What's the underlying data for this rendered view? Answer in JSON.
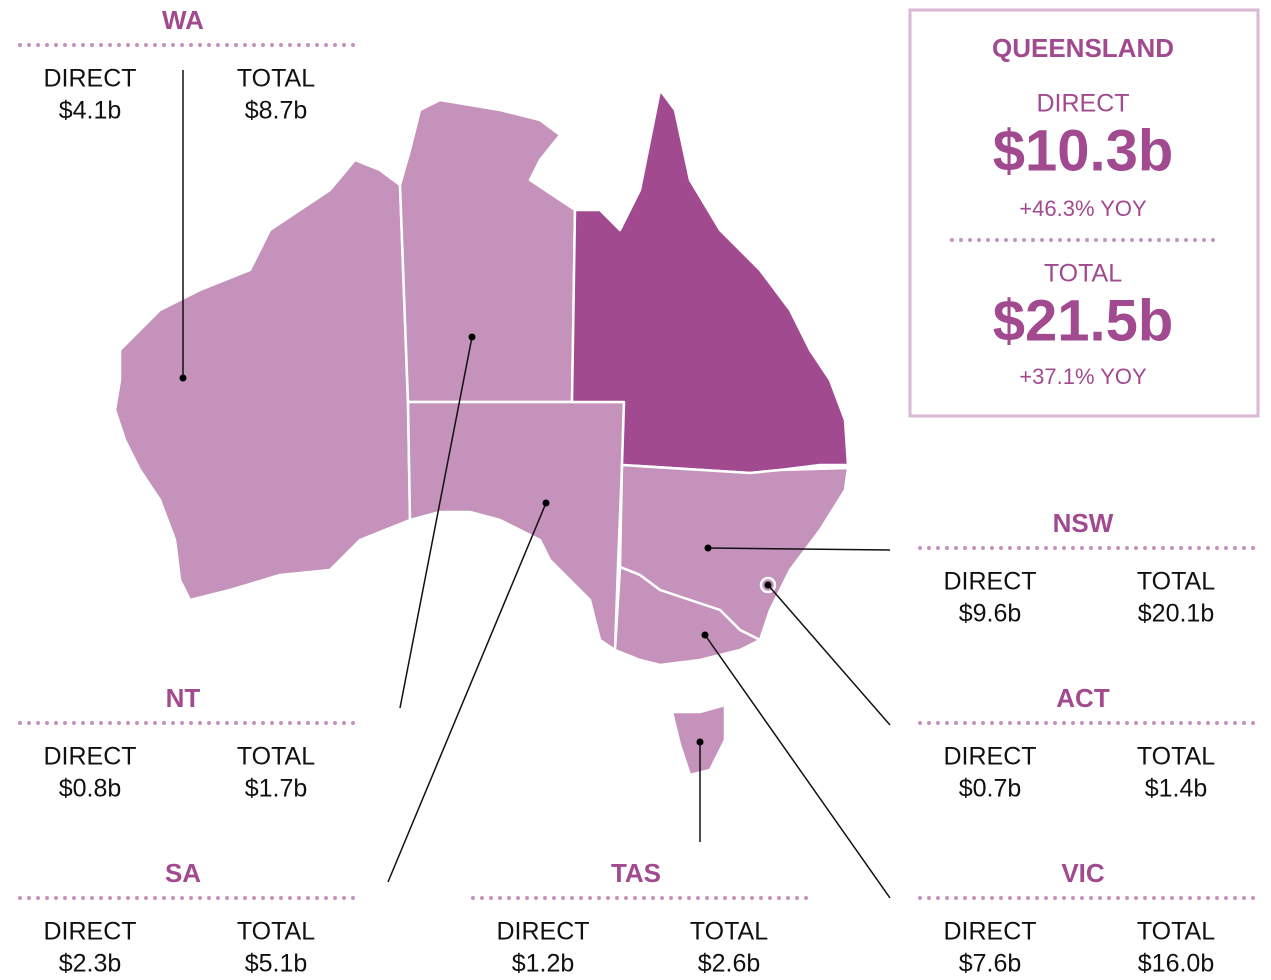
{
  "labels": {
    "direct": "DIRECT",
    "total": "TOTAL"
  },
  "states": [
    {
      "name": "WA",
      "direct": "$4.1b",
      "total": "$8.7b"
    },
    {
      "name": "NT",
      "direct": "$0.8b",
      "total": "$1.7b"
    },
    {
      "name": "SA",
      "direct": "$2.3b",
      "total": "$5.1b"
    },
    {
      "name": "TAS",
      "direct": "$1.2b",
      "total": "$2.6b"
    },
    {
      "name": "NSW",
      "direct": "$9.6b",
      "total": "$20.1b"
    },
    {
      "name": "ACT",
      "direct": "$0.7b",
      "total": "$1.4b"
    },
    {
      "name": "VIC",
      "direct": "$7.6b",
      "total": "$16.0b"
    }
  ],
  "highlight": {
    "name": "QUEENSLAND",
    "direct": "$10.3b",
    "direct_change": "+46.3% YOY",
    "total": "$21.5b",
    "total_change": "+37.1% YOY"
  }
}
